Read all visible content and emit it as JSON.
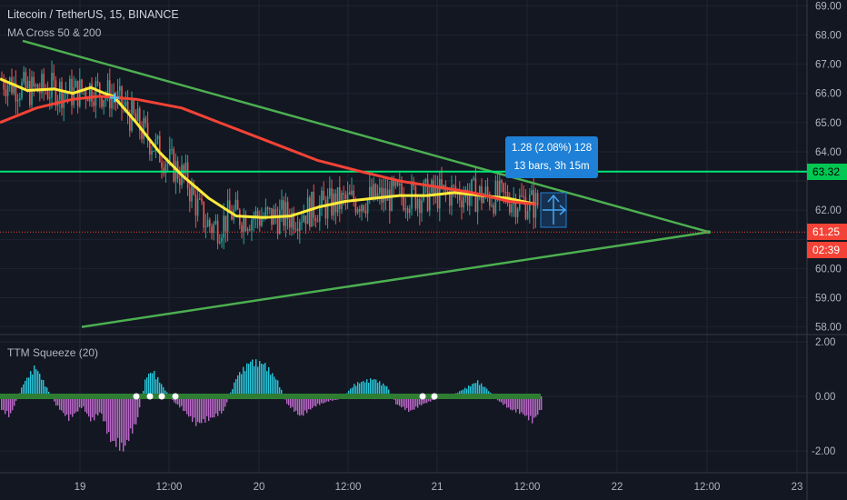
{
  "header": {
    "symbol_title": "Litecoin / TetherUS, 15, BINANCE",
    "indicator_label": "MA Cross 50 & 200",
    "oscillator_label": "TTM Squeeze (20)"
  },
  "measure_tool": {
    "line1": "1.28 (2.08%) 128",
    "line2": "13 bars, 3h 15m"
  },
  "price_tags": {
    "horizontal_level": "63.32",
    "last_price": "61.25",
    "countdown": "02:39"
  },
  "colors": {
    "background": "#131722",
    "grid": "#1f2433",
    "axis_text": "#b2b5be",
    "bull_candle": "#26a69a",
    "bear_candle": "#ef5350",
    "ma50": "#ffeb3b",
    "ma200": "#f44336",
    "triangle_lines": "#4caf50",
    "horizontal_level_line": "#00e676",
    "last_price_line": "#f44336",
    "measure_box": "#1e80d6",
    "osc_positive": "#26c6da",
    "osc_negative": "#ba68c8",
    "squeeze_dot": "#2e7d32"
  },
  "chart_data": [
    {
      "type": "candlestick",
      "title": "Litecoin / TetherUS, 15, BINANCE",
      "x_ticks": [
        "19",
        "12:00",
        "20",
        "12:00",
        "21",
        "12:00",
        "22",
        "12:00",
        "23"
      ],
      "y_ticks": [
        "69.00",
        "68.00",
        "67.00",
        "66.00",
        "65.00",
        "64.00",
        "63.00",
        "62.00",
        "61.00",
        "60.00",
        "59.00",
        "58.00"
      ],
      "ylim": [
        57.8,
        69.2
      ],
      "series": [
        {
          "name": "MA Cross 50 & 200 (fast)",
          "color": "#ffeb3b",
          "points": [
            [
              0,
              66.5
            ],
            [
              30,
              66.1
            ],
            [
              60,
              66.15
            ],
            [
              80,
              66.0
            ],
            [
              100,
              66.2
            ],
            [
              115,
              66.0
            ],
            [
              125,
              65.9
            ],
            [
              150,
              65.0
            ],
            [
              175,
              64.0
            ],
            [
              200,
              63.2
            ],
            [
              230,
              62.4
            ],
            [
              260,
              61.8
            ],
            [
              290,
              61.75
            ],
            [
              320,
              61.8
            ],
            [
              350,
              62.1
            ],
            [
              380,
              62.3
            ],
            [
              410,
              62.4
            ],
            [
              440,
              62.5
            ],
            [
              470,
              62.5
            ],
            [
              500,
              62.6
            ],
            [
              530,
              62.5
            ],
            [
              560,
              62.4
            ],
            [
              590,
              62.2
            ]
          ]
        },
        {
          "name": "MA Cross 50 & 200 (slow)",
          "color": "#f44336",
          "points": [
            [
              0,
              65.0
            ],
            [
              40,
              65.5
            ],
            [
              80,
              65.8
            ],
            [
              110,
              65.9
            ],
            [
              150,
              65.8
            ],
            [
              200,
              65.5
            ],
            [
              250,
              64.9
            ],
            [
              300,
              64.3
            ],
            [
              350,
              63.7
            ],
            [
              400,
              63.3
            ],
            [
              440,
              63.0
            ],
            [
              480,
              62.8
            ],
            [
              520,
              62.6
            ],
            [
              560,
              62.3
            ],
            [
              590,
              62.2
            ]
          ]
        }
      ],
      "drawings": {
        "triangle_upper": [
          [
            25,
            67.8
          ],
          [
            780,
            61.25
          ]
        ],
        "triangle_lower": [
          [
            90,
            58.0
          ],
          [
            780,
            61.25
          ]
        ],
        "horizontal_level": 63.32,
        "last_price": 61.25
      },
      "grid": true
    },
    {
      "type": "bar",
      "title": "TTM Squeeze (20)",
      "y_ticks": [
        "2.00",
        "0.00",
        "-2.00"
      ],
      "ylim": [
        -2.8,
        2.2
      ],
      "envelope": [
        [
          0,
          -0.5
        ],
        [
          10,
          -0.8
        ],
        [
          25,
          0.5
        ],
        [
          38,
          1.2
        ],
        [
          50,
          0.4
        ],
        [
          60,
          -0.3
        ],
        [
          75,
          -0.9
        ],
        [
          90,
          -0.4
        ],
        [
          100,
          -1.0
        ],
        [
          110,
          -0.6
        ],
        [
          120,
          -1.7
        ],
        [
          135,
          -2.1
        ],
        [
          150,
          -1.0
        ],
        [
          160,
          0.8
        ],
        [
          168,
          1.0
        ],
        [
          180,
          0.3
        ],
        [
          190,
          -0.2
        ],
        [
          200,
          -0.5
        ],
        [
          215,
          -1.1
        ],
        [
          230,
          -0.9
        ],
        [
          245,
          -0.6
        ],
        [
          260,
          0.8
        ],
        [
          275,
          1.4
        ],
        [
          290,
          1.3
        ],
        [
          305,
          0.6
        ],
        [
          315,
          -0.3
        ],
        [
          330,
          -0.8
        ],
        [
          345,
          -0.4
        ],
        [
          360,
          -0.2
        ],
        [
          375,
          -0.1
        ],
        [
          390,
          0.5
        ],
        [
          410,
          0.7
        ],
        [
          425,
          0.4
        ],
        [
          435,
          -0.3
        ],
        [
          450,
          -0.6
        ],
        [
          465,
          -0.3
        ],
        [
          480,
          -0.1
        ],
        [
          500,
          0.1
        ],
        [
          515,
          0.4
        ],
        [
          525,
          0.6
        ],
        [
          535,
          0.3
        ],
        [
          545,
          -0.1
        ],
        [
          560,
          -0.5
        ],
        [
          575,
          -0.7
        ],
        [
          585,
          -1.0
        ],
        [
          595,
          -0.5
        ]
      ],
      "squeeze_dots": [
        150,
        165,
        178,
        193,
        465,
        478
      ]
    }
  ]
}
